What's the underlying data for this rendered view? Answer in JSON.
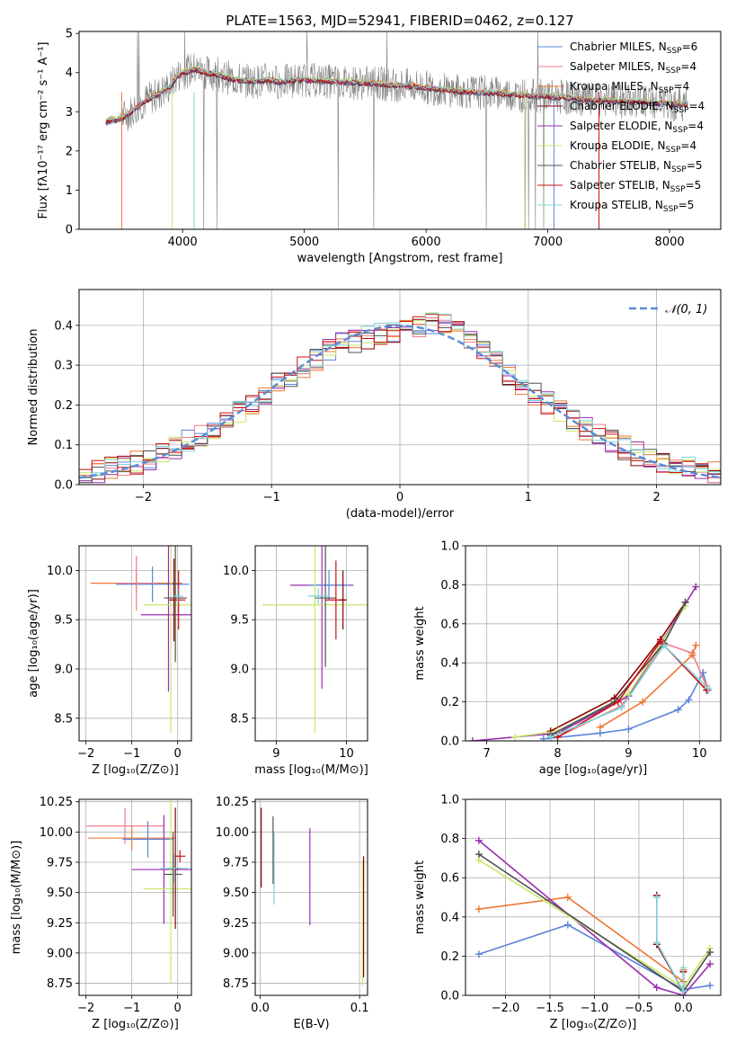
{
  "colors": {
    "chabrier_miles": "#5b84d8",
    "salpeter_miles": "#f07f8a",
    "kroupa_miles": "#ee7733",
    "chabrier_elodie": "#8b0000",
    "salpeter_elodie": "#9a2db0",
    "kroupa_elodie": "#c8e86a",
    "chabrier_stelib": "#505050",
    "salpeter_stelib": "#cc1111",
    "kroupa_stelib": "#7fd4d8",
    "gaussian": "#5b8dd6",
    "grid": "#b0b0b0"
  },
  "chart_data": [
    {
      "id": "spectrum",
      "type": "line",
      "title": "PLATE=1563, MJD=52941, FIBERID=0462, z=0.127",
      "xlabel": "wavelength [Angstrom, rest frame]",
      "ylabel": "Flux [fλ10⁻¹⁷ erg cm⁻² s⁻¹ A⁻¹]",
      "xlim": [
        3150,
        8420
      ],
      "ylim": [
        0,
        5.05
      ],
      "xticks": [
        4000,
        5000,
        6000,
        7000,
        8000
      ],
      "yticks": [
        0,
        1,
        2,
        3,
        4,
        5
      ],
      "grid": false,
      "legend_position": "upper right",
      "observed_spectrum_approx": {
        "x": [
          3370,
          3450,
          3530,
          3620,
          3700,
          3800,
          3900,
          3950,
          4000,
          4100,
          4200,
          4300,
          4400,
          4500,
          4600,
          4700,
          4800,
          4900,
          5000,
          5200,
          5400,
          5600,
          5800,
          6000,
          6200,
          6400,
          6600,
          6800,
          7000,
          7200,
          7400,
          7600,
          7800,
          8000,
          8100
        ],
        "y": [
          2.75,
          2.8,
          2.9,
          3.1,
          3.3,
          3.45,
          3.65,
          3.9,
          4.0,
          4.1,
          4.0,
          3.95,
          3.85,
          3.8,
          3.78,
          3.82,
          3.76,
          3.8,
          3.82,
          3.78,
          3.75,
          3.72,
          3.68,
          3.62,
          3.55,
          3.5,
          3.48,
          3.42,
          3.4,
          3.35,
          3.3,
          3.28,
          3.25,
          3.2,
          3.2
        ],
        "noise_amplitude": 0.9
      },
      "series": [
        {
          "name": "Chabrier MILES, N_SSP=6",
          "label_main": "Chabrier MILES, N",
          "label_sub": "SSP",
          "label_tail": "=6",
          "color_key": "chabrier_miles"
        },
        {
          "name": "Salpeter MILES, N_SSP=4",
          "label_main": "Salpeter MILES, N",
          "label_sub": "SSP",
          "label_tail": "=4",
          "color_key": "salpeter_miles"
        },
        {
          "name": "Kroupa MILES, N_SSP=4",
          "label_main": "Kroupa MILES, N",
          "label_sub": "SSP",
          "label_tail": "=4",
          "color_key": "kroupa_miles"
        },
        {
          "name": "Chabrier ELODIE, N_SSP=4",
          "label_main": "Chabrier ELODIE, N",
          "label_sub": "SSP",
          "label_tail": "=4",
          "color_key": "chabrier_elodie"
        },
        {
          "name": "Salpeter ELODIE, N_SSP=4",
          "label_main": "Salpeter ELODIE, N",
          "label_sub": "SSP",
          "label_tail": "=4",
          "color_key": "salpeter_elodie"
        },
        {
          "name": "Kroupa ELODIE, N_SSP=4",
          "label_main": "Kroupa ELODIE, N",
          "label_sub": "SSP",
          "label_tail": "=4",
          "color_key": "kroupa_elodie"
        },
        {
          "name": "Chabrier STELIB, N_SSP=5",
          "label_main": "Chabrier STELIB, N",
          "label_sub": "SSP",
          "label_tail": "=5",
          "color_key": "chabrier_stelib"
        },
        {
          "name": "Salpeter STELIB, N_SSP=5",
          "label_main": "Salpeter STELIB, N",
          "label_sub": "SSP",
          "label_tail": "=5",
          "color_key": "salpeter_stelib"
        },
        {
          "name": "Kroupa STELIB, N_SSP=5",
          "label_main": "Kroupa STELIB, N",
          "label_sub": "SSP",
          "label_tail": "=5",
          "color_key": "kroupa_stelib"
        }
      ]
    },
    {
      "id": "residuals",
      "type": "line",
      "xlabel": "(data-model)/error",
      "ylabel": "Normed distribution",
      "xlim": [
        -2.5,
        2.5
      ],
      "ylim": [
        0,
        0.49
      ],
      "xticks": [
        -2,
        -1,
        0,
        1,
        2
      ],
      "yticks": [
        0.0,
        0.1,
        0.2,
        0.3,
        0.4
      ],
      "grid": true,
      "legend_position": "upper right",
      "gaussian_label": "𝒩(0, 1)",
      "bin_width": 0.1,
      "histogram_envelope": {
        "x": [
          -2.5,
          -2.0,
          -1.5,
          -1.0,
          -0.5,
          0.0,
          0.3,
          0.5,
          1.0,
          1.5,
          2.0,
          2.5
        ],
        "y": [
          0.02,
          0.06,
          0.13,
          0.24,
          0.35,
          0.39,
          0.41,
          0.37,
          0.24,
          0.13,
          0.055,
          0.025
        ]
      }
    },
    {
      "id": "age_vs_Z",
      "type": "scatter",
      "xlabel": "Z [log₁₀(Z/Z⊙)]",
      "ylabel": "age  [log₁₀(age/yr)]",
      "xlim": [
        -2.15,
        0.3
      ],
      "ylim": [
        8.27,
        10.25
      ],
      "xticks": [
        -2,
        -1,
        0
      ],
      "yticks": [
        8.5,
        9.0,
        9.5,
        10.0
      ],
      "grid": true,
      "points": [
        {
          "color_key": "kroupa_miles",
          "x": -0.9,
          "xerr": 1.0,
          "y": 9.87,
          "yerr": 0.1
        },
        {
          "color_key": "chabrier_miles",
          "x": -0.55,
          "xerr": 0.8,
          "y": 9.86,
          "yerr": 0.18
        },
        {
          "color_key": "salpeter_miles",
          "x": -0.9,
          "xerr": 0.45,
          "y": 9.87,
          "yerr": 0.28
        },
        {
          "color_key": "salpeter_elodie",
          "x": -0.2,
          "xerr": 0.6,
          "y": 9.55,
          "yerr": 0.78
        },
        {
          "color_key": "kroupa_elodie",
          "x": -0.15,
          "xerr": 0.6,
          "y": 9.65,
          "yerr": 1.3
        },
        {
          "color_key": "chabrier_elodie",
          "x": -0.08,
          "xerr": 0.1,
          "y": 9.7,
          "yerr": 0.42
        },
        {
          "color_key": "chabrier_stelib",
          "x": -0.05,
          "xerr": 0.25,
          "y": 9.72,
          "yerr": 0.65
        },
        {
          "color_key": "salpeter_stelib",
          "x": 0.02,
          "xerr": 0.15,
          "y": 9.7,
          "yerr": 0.3
        },
        {
          "color_key": "kroupa_stelib",
          "x": 0.0,
          "xerr": 0.12,
          "y": 9.74,
          "yerr": 0.08
        }
      ]
    },
    {
      "id": "age_vs_mass",
      "type": "scatter",
      "xlabel": "mass [log₁₀(M/M⊙)]",
      "xlim": [
        8.7,
        10.3
      ],
      "ylim": [
        8.27,
        10.25
      ],
      "xticks": [
        9,
        10
      ],
      "yticks": [
        8.5,
        9.0,
        9.5,
        10.0
      ],
      "grid": true,
      "points": [
        {
          "color_key": "salpeter_elodie",
          "x": 9.65,
          "xerr": 0.45,
          "y": 9.85,
          "yerr": 1.05
        },
        {
          "color_key": "chabrier_miles",
          "x": 9.75,
          "xerr": 0.3,
          "y": 9.85,
          "yerr": 0.15
        },
        {
          "color_key": "kroupa_elodie",
          "x": 9.55,
          "xerr": 0.75,
          "y": 9.65,
          "yerr": 1.3
        },
        {
          "color_key": "chabrier_stelib",
          "x": 9.7,
          "xerr": 0.15,
          "y": 9.72,
          "yerr": 0.7
        },
        {
          "color_key": "salpeter_stelib",
          "x": 9.85,
          "xerr": 0.15,
          "y": 9.7,
          "yerr": 0.4
        },
        {
          "color_key": "chabrier_elodie",
          "x": 9.95,
          "xerr": 0.05,
          "y": 9.7,
          "yerr": 0.3
        },
        {
          "color_key": "kroupa_stelib",
          "x": 9.6,
          "xerr": 0.15,
          "y": 9.74,
          "yerr": 0.08
        }
      ]
    },
    {
      "id": "weight_vs_age",
      "type": "line",
      "xlabel": "age  [log₁₀(age/yr)]",
      "ylabel": "mass weight",
      "xlim": [
        6.7,
        10.3
      ],
      "ylim": [
        0,
        1.0
      ],
      "xticks": [
        7,
        8,
        9,
        10
      ],
      "yticks": [
        0.0,
        0.2,
        0.4,
        0.6,
        0.8,
        1.0
      ],
      "grid": true,
      "series": [
        {
          "color_key": "chabrier_miles",
          "x": [
            7.8,
            8.6,
            9.0,
            9.7,
            9.85,
            10.05,
            10.12
          ],
          "y": [
            0.01,
            0.04,
            0.06,
            0.16,
            0.21,
            0.35,
            0.26
          ]
        },
        {
          "color_key": "salpeter_miles",
          "x": [
            8.0,
            8.9,
            9.5,
            9.9,
            10.1
          ],
          "y": [
            0.02,
            0.18,
            0.5,
            0.45,
            0.28
          ]
        },
        {
          "color_key": "kroupa_miles",
          "x": [
            8.6,
            9.2,
            9.9,
            9.95
          ],
          "y": [
            0.07,
            0.2,
            0.44,
            0.49
          ]
        },
        {
          "color_key": "chabrier_elodie",
          "x": [
            7.9,
            8.8,
            9.45,
            9.8
          ],
          "y": [
            0.05,
            0.22,
            0.52,
            0.71
          ]
        },
        {
          "color_key": "salpeter_elodie",
          "x": [
            6.8,
            8.0,
            9.0,
            9.95
          ],
          "y": [
            0.0,
            0.04,
            0.23,
            0.79
          ]
        },
        {
          "color_key": "kroupa_elodie",
          "x": [
            7.4,
            8.0,
            9.0,
            9.8
          ],
          "y": [
            0.02,
            0.05,
            0.24,
            0.69
          ]
        },
        {
          "color_key": "chabrier_stelib",
          "x": [
            7.9,
            8.8,
            9.5,
            9.8
          ],
          "y": [
            0.03,
            0.2,
            0.5,
            0.71
          ]
        },
        {
          "color_key": "salpeter_stelib",
          "x": [
            8.0,
            8.85,
            9.45,
            10.1
          ],
          "y": [
            0.02,
            0.2,
            0.51,
            0.26
          ]
        },
        {
          "color_key": "kroupa_stelib",
          "x": [
            7.9,
            8.9,
            9.5,
            10.12
          ],
          "y": [
            0.02,
            0.17,
            0.49,
            0.27
          ]
        }
      ]
    },
    {
      "id": "mass_vs_Z",
      "type": "scatter",
      "xlabel": "Z [log₁₀(Z/Z⊙)]",
      "ylabel": "mass [log₁₀(M/M⊙)]",
      "xlim": [
        -2.15,
        0.3
      ],
      "ylim": [
        8.65,
        10.27
      ],
      "xticks": [
        -2,
        -1,
        0
      ],
      "yticks": [
        8.75,
        9.0,
        9.25,
        9.5,
        9.75,
        10.0,
        10.25
      ],
      "grid": true,
      "points": [
        {
          "color_key": "kroupa_miles",
          "x": -1.0,
          "xerr": 0.95,
          "y": 9.95,
          "yerr": 0.1
        },
        {
          "color_key": "salpeter_miles",
          "x": -1.15,
          "xerr": 0.85,
          "y": 10.05,
          "yerr": 0.15
        },
        {
          "color_key": "chabrier_miles",
          "x": -0.65,
          "xerr": 0.55,
          "y": 9.94,
          "yerr": 0.15
        },
        {
          "color_key": "salpeter_elodie",
          "x": -0.3,
          "xerr": 0.7,
          "y": 9.69,
          "yerr": 0.45
        },
        {
          "color_key": "kroupa_elodie",
          "x": -0.15,
          "xerr": 0.6,
          "y": 9.53,
          "yerr": 0.78
        },
        {
          "color_key": "chabrier_elodie",
          "x": -0.05,
          "xerr": 0.1,
          "y": 9.7,
          "yerr": 0.5
        },
        {
          "color_key": "chabrier_stelib",
          "x": -0.1,
          "xerr": 0.2,
          "y": 9.65,
          "yerr": 0.35
        },
        {
          "color_key": "salpeter_stelib",
          "x": 0.05,
          "xerr": 0.12,
          "y": 9.8,
          "yerr": 0.05
        },
        {
          "color_key": "kroupa_stelib",
          "x": -0.08,
          "xerr": 0.3,
          "y": 9.7,
          "yerr": 0.12
        }
      ]
    },
    {
      "id": "mass_vs_ebv",
      "type": "scatter",
      "xlabel": "E(B-V)",
      "xlim": [
        -0.005,
        0.108
      ],
      "ylim": [
        8.65,
        10.27
      ],
      "xticks": [
        0.0,
        0.1
      ],
      "yticks": [
        8.75,
        9.0,
        9.25,
        9.5,
        9.75,
        10.0,
        10.25
      ],
      "grid": true,
      "points": [
        {
          "color_key": "chabrier_elodie",
          "x": 0.001,
          "y": 9.87,
          "yerr": 0.33
        },
        {
          "color_key": "chabrier_stelib",
          "x": 0.013,
          "y": 9.85,
          "yerr": 0.28
        },
        {
          "color_key": "kroupa_stelib",
          "x": 0.014,
          "y": 9.7,
          "yerr": 0.3
        },
        {
          "color_key": "salpeter_elodie",
          "x": 0.05,
          "y": 9.63,
          "yerr": 0.4
        },
        {
          "color_key": "kroupa_elodie",
          "x": 0.103,
          "y": 9.25,
          "yerr": 0.52
        },
        {
          "color_key": "chabrier_elodie",
          "x": 0.104,
          "y": 9.3,
          "yerr": 0.5
        }
      ]
    },
    {
      "id": "weight_vs_Z",
      "type": "line",
      "xlabel": "Z [log₁₀(Z/Z⊙)]",
      "ylabel": "mass weight",
      "xlim": [
        -2.45,
        0.42
      ],
      "ylim": [
        0,
        1.0
      ],
      "xticks": [
        -2.0,
        -1.5,
        -1.0,
        -0.5,
        0.0
      ],
      "yticks": [
        0.0,
        0.2,
        0.4,
        0.6,
        0.8,
        1.0
      ],
      "grid": true,
      "series": [
        {
          "color_key": "chabrier_miles",
          "x": [
            -2.3,
            -1.3,
            0.0,
            0.3
          ],
          "y": [
            0.21,
            0.36,
            0.03,
            0.05
          ]
        },
        {
          "color_key": "kroupa_miles",
          "x": [
            -2.3,
            -1.3,
            0.0,
            0.0
          ],
          "y": [
            0.44,
            0.5,
            0.07,
            0.13
          ]
        },
        {
          "color_key": "salpeter_elodie",
          "x": [
            -2.3,
            -0.3,
            0.0,
            0.3
          ],
          "y": [
            0.79,
            0.04,
            0.0,
            0.16
          ]
        },
        {
          "color_key": "kroupa_elodie",
          "x": [
            -2.3,
            0.0,
            0.3
          ],
          "y": [
            0.69,
            0.04,
            0.24
          ]
        },
        {
          "color_key": "chabrier_stelib",
          "x": [
            -2.3,
            0.0,
            0.3
          ],
          "y": [
            0.72,
            0.02,
            0.22
          ]
        },
        {
          "color_key": "chabrier_elodie",
          "x": [
            -0.3,
            -0.3,
            0.0,
            0.0
          ],
          "y": [
            0.51,
            0.26,
            0.02,
            0.12
          ]
        },
        {
          "color_key": "kroupa_stelib",
          "x": [
            -0.3,
            -0.3,
            0.0,
            0.0
          ],
          "y": [
            0.5,
            0.27,
            0.02,
            0.14
          ]
        }
      ]
    }
  ]
}
